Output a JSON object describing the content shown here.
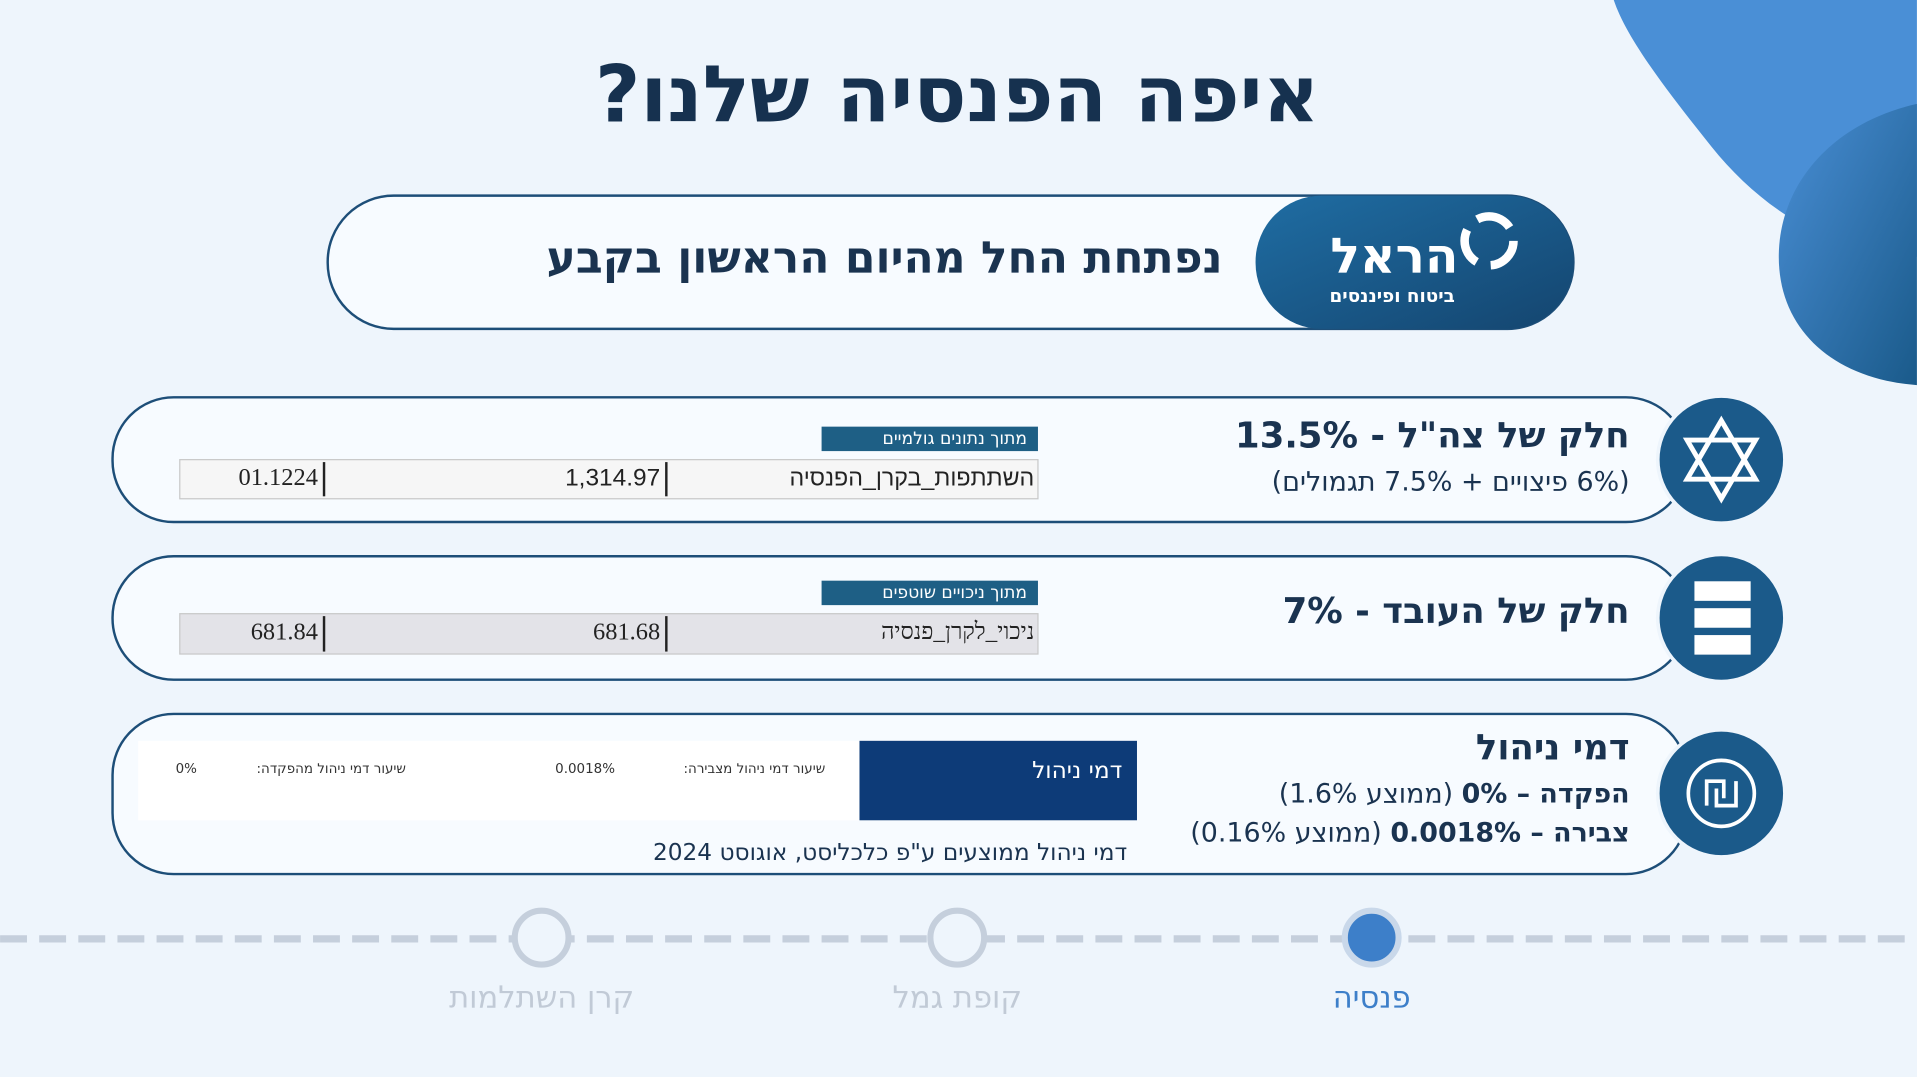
{
  "title": "איפה הפנסיה שלנו?",
  "banner": {
    "logo_name": "הראל",
    "logo_tagline": "ביטוח ופיננסים",
    "text": "נפתחת החל מהיום הראשון בקבע"
  },
  "rows": [
    {
      "title": "חלק של צה\"ל - 13.5%",
      "subtitle": "(6% פיצויים + 7.5% תגמולים)",
      "tag": "מתוך נתונים גולמיים",
      "record": [
        "השתתפות_בקרן_הפנסיה",
        "1,314.97",
        "01.1224"
      ]
    },
    {
      "title": "חלק של העובד  - 7%",
      "tag": "מתוך ניכויים שוטפים",
      "record": [
        "ניכוי_לקרן_פנסיה",
        "681.68",
        "681.84"
      ]
    },
    {
      "title": "דמי ניהול",
      "lines": [
        {
          "bold": "הפקדה – 0%",
          "normal": "(ממוצע 1.6%)"
        },
        {
          "bold": "צבירה – 0.0018%",
          "normal": "(ממוצע 0.16%)"
        }
      ],
      "table": {
        "header": "דמי ניהול",
        "cells": [
          "שיעור דמי ניהול מצבירה:",
          "0.0018%",
          "שיעור דמי ניהול מהפקדה:",
          "0%"
        ]
      },
      "note": "דמי ניהול ממוצעים ע\"פ כלכליסט, אוגוסט 2024"
    }
  ],
  "steps": [
    {
      "label": "פנסיה",
      "active": true
    },
    {
      "label": "קופת גמל",
      "active": false
    },
    {
      "label": "קרן השתלמות",
      "active": false
    }
  ]
}
